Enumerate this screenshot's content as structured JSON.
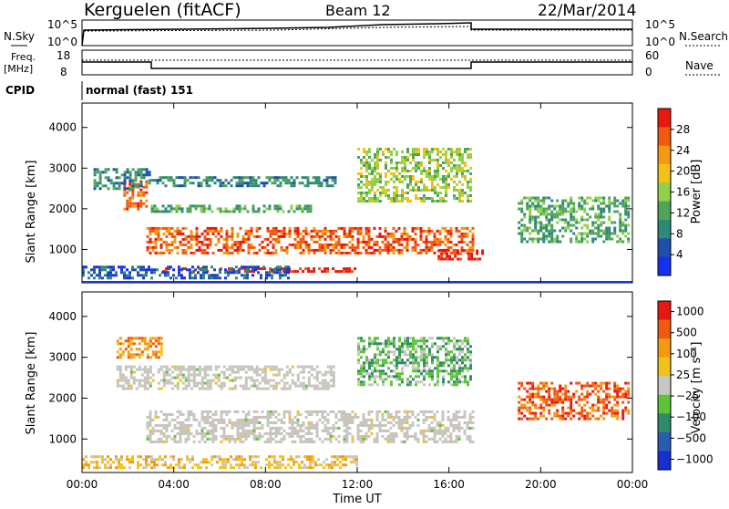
{
  "header": {
    "station": "Kerguelen (fitACF)",
    "beam": "Beam 12",
    "date": "22/Mar/2014"
  },
  "noise_panel": {
    "left_label": "N.Sky",
    "right_label": "N.Search",
    "left_ticks": [
      "10^5",
      "10^0"
    ],
    "right_ticks": [
      "10^5",
      "10^0"
    ]
  },
  "freq_panel": {
    "left_label_1": "Freq.",
    "left_label_2": "[MHz]",
    "right_label": "Nave",
    "left_ticks": [
      "18",
      "8"
    ],
    "right_ticks": [
      "60",
      "0"
    ]
  },
  "cpid": {
    "label": "CPID",
    "value": "normal (fast) 151"
  },
  "colors": {
    "power_scale": [
      "#1530f0",
      "#1f4fa8",
      "#2e8a78",
      "#4fa35a",
      "#8fd14a",
      "#f2c21a",
      "#f39a12",
      "#f05a10",
      "#e81810"
    ],
    "velocity_scale": [
      "#1530d0",
      "#2a5cb0",
      "#2f8a6a",
      "#5cc33a",
      "#c8c8c0",
      "#f2c21a",
      "#f39a12",
      "#f05a10",
      "#e81810"
    ],
    "ground_scatter": "#c6c4bc"
  },
  "chart_data": [
    {
      "type": "heatmap",
      "title": "",
      "xlabel": "Time UT",
      "ylabel": "Slant Range [km]",
      "x_ticks": [
        "00:00",
        "04:00",
        "08:00",
        "12:00",
        "16:00",
        "20:00",
        "00:00"
      ],
      "y_ticks": [
        "1000",
        "2000",
        "3000",
        "4000"
      ],
      "xlim": [
        0,
        24
      ],
      "ylim": [
        180,
        4600
      ],
      "colorbar": {
        "label": "Power [dB]",
        "ticks": [
          "4",
          "8",
          "12",
          "16",
          "20",
          "24",
          "28"
        ],
        "range": [
          0,
          30
        ]
      },
      "regions": [
        {
          "t0": 2.8,
          "t1": 17.0,
          "r0": 900,
          "r1": 1550,
          "level": 7
        },
        {
          "t0": 1.8,
          "t1": 2.8,
          "r0": 2000,
          "r1": 2700,
          "level": 7
        },
        {
          "t0": 3.5,
          "t1": 12.0,
          "r0": 450,
          "r1": 560,
          "level": 8
        },
        {
          "t0": 0.5,
          "t1": 3.0,
          "r0": 2500,
          "r1": 3000,
          "level": 2
        },
        {
          "t0": 3.0,
          "t1": 10.0,
          "r0": 1900,
          "r1": 2100,
          "level": 3
        },
        {
          "t0": 3.0,
          "t1": 11.0,
          "r0": 2550,
          "r1": 2800,
          "level": 2
        },
        {
          "t0": 12.0,
          "t1": 17.0,
          "r0": 2200,
          "r1": 3500,
          "level": 4
        },
        {
          "t0": 0.0,
          "t1": 9.0,
          "r0": 300,
          "r1": 600,
          "level": 1
        },
        {
          "t0": 15.5,
          "t1": 17.5,
          "r0": 750,
          "r1": 1000,
          "level": 8
        },
        {
          "t0": 19.0,
          "t1": 23.8,
          "r0": 1200,
          "r1": 2300,
          "level": 3
        }
      ]
    },
    {
      "type": "heatmap",
      "title": "",
      "xlabel": "Time UT",
      "ylabel": "Slant Range [km]",
      "x_ticks": [
        "00:00",
        "04:00",
        "08:00",
        "12:00",
        "16:00",
        "20:00",
        "00:00"
      ],
      "y_ticks": [
        "1000",
        "2000",
        "3000",
        "4000"
      ],
      "xlim": [
        0,
        24
      ],
      "ylim": [
        180,
        4600
      ],
      "colorbar": {
        "label": "Velocity [m s⁻¹]",
        "ticks": [
          "1000",
          "500",
          "100",
          "25",
          "−25",
          "−100",
          "−500",
          "−1000"
        ]
      },
      "regions": [
        {
          "t0": 2.8,
          "t1": 17.0,
          "r0": 900,
          "r1": 1700,
          "level": 4
        },
        {
          "t0": 1.5,
          "t1": 11.0,
          "r0": 2200,
          "r1": 2800,
          "level": 4
        },
        {
          "t0": 12.0,
          "t1": 17.0,
          "r0": 2300,
          "r1": 3500,
          "level": 3
        },
        {
          "t0": 0.0,
          "t1": 12.0,
          "r0": 300,
          "r1": 600,
          "level": 5
        },
        {
          "t0": 1.5,
          "t1": 3.5,
          "r0": 3000,
          "r1": 3500,
          "level": 6
        },
        {
          "t0": 19.0,
          "t1": 23.8,
          "r0": 1500,
          "r1": 2400,
          "level": 7
        }
      ]
    }
  ]
}
